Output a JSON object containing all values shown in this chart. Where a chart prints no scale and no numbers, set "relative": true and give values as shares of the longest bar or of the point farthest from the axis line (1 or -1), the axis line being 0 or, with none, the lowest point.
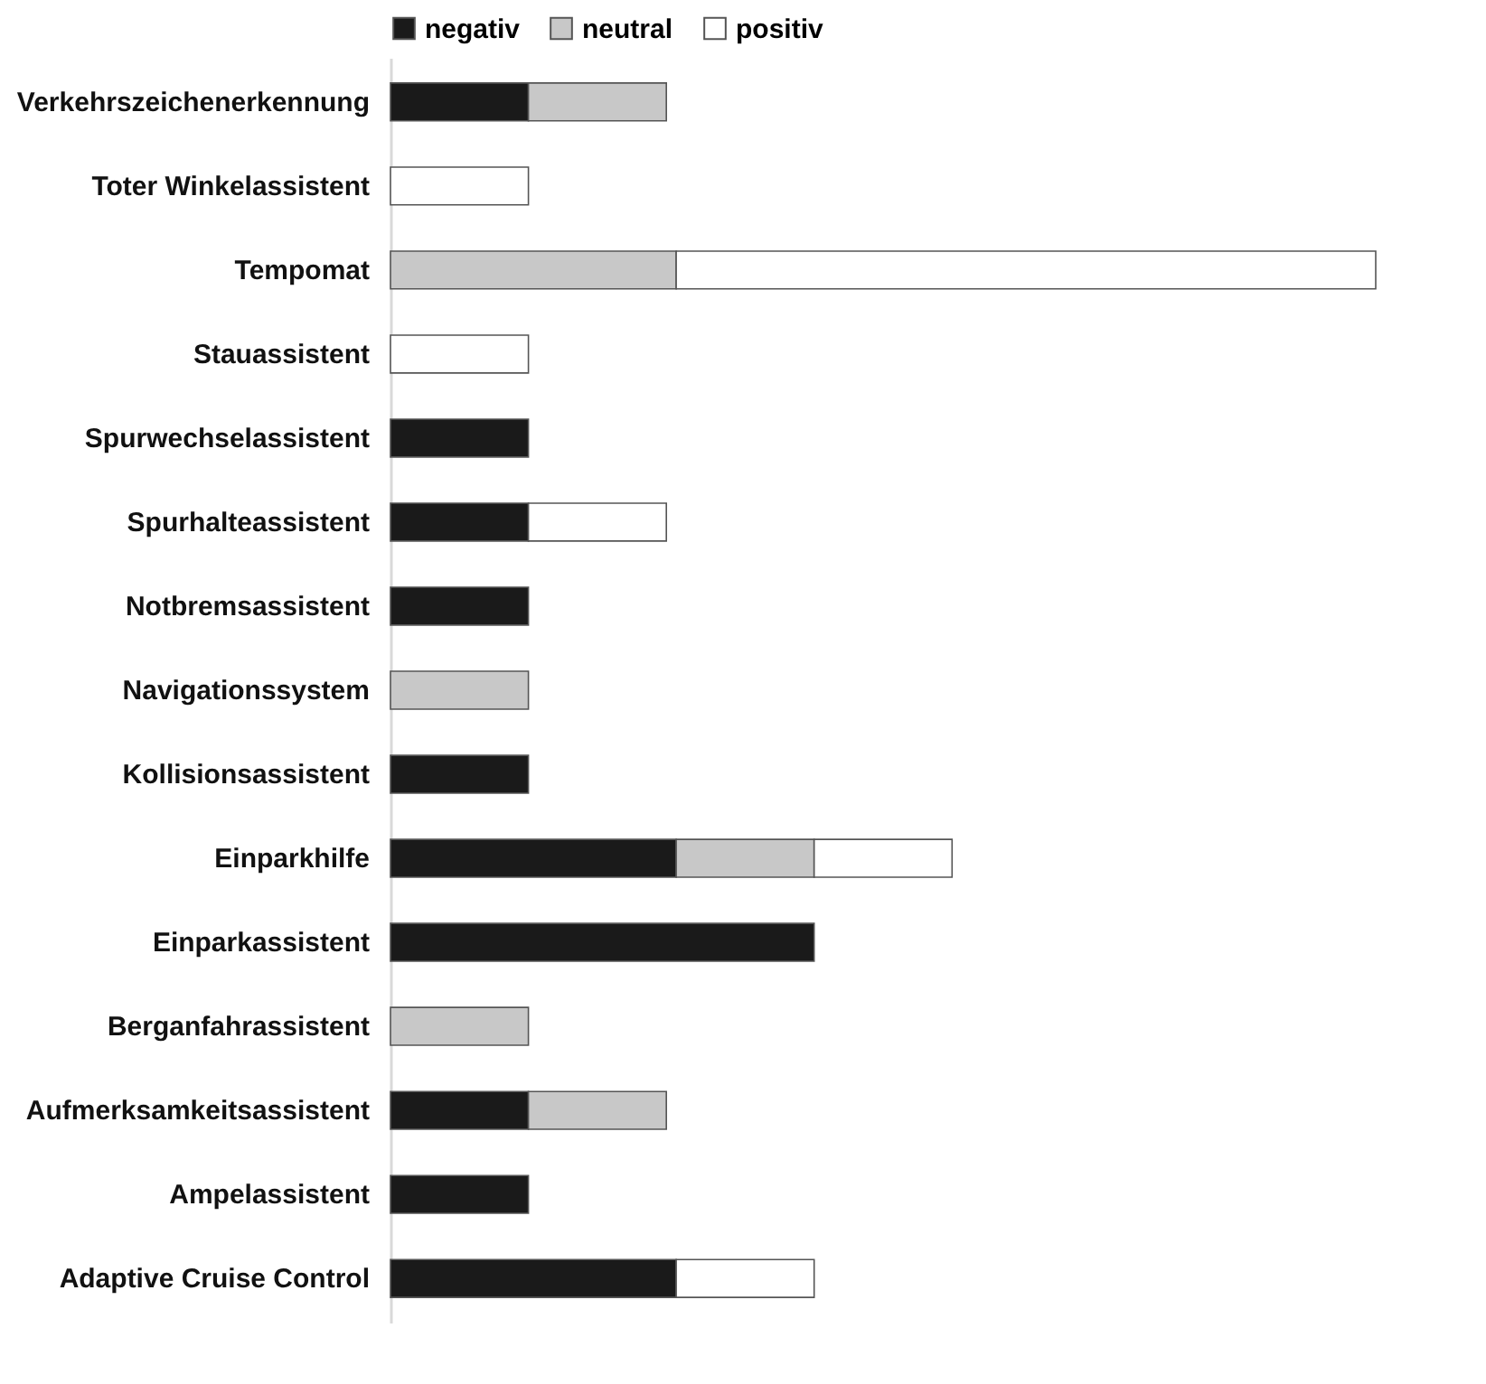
{
  "chart_data": {
    "type": "bar",
    "orientation": "horizontal",
    "stacked": true,
    "relative": true,
    "legend": "top",
    "grid": false,
    "categories": [
      "Verkehrszeichenerkennung",
      "Toter Winkelassistent",
      "Tempomat",
      "Stauassistent",
      "Spurwechselassistent",
      "Spurhalteassistent",
      "Notbremsassistent",
      "Navigationssystem",
      "Kollisionsassistent",
      "Einparkhilfe",
      "Einparkassistent",
      "Berganfahrassistent",
      "Aufmerksamkeitsassistent",
      "Ampelassistent",
      "Adaptive Cruise Control"
    ],
    "series": [
      {
        "name": "negativ",
        "color": "#1a1a1a",
        "values": [
          0.14,
          null,
          null,
          null,
          0.14,
          0.14,
          0.14,
          null,
          0.14,
          0.29,
          0.43,
          null,
          0.14,
          0.14,
          0.29
        ]
      },
      {
        "name": "neutral",
        "color": "#c8c8c8",
        "values": [
          0.14,
          null,
          0.29,
          null,
          null,
          null,
          null,
          0.14,
          null,
          0.14,
          null,
          0.14,
          0.14,
          null,
          null
        ]
      },
      {
        "name": "positiv",
        "color": "#ffffff",
        "values": [
          null,
          0.14,
          0.71,
          0.14,
          null,
          0.14,
          null,
          null,
          null,
          0.14,
          null,
          null,
          null,
          null,
          0.14
        ]
      }
    ]
  }
}
